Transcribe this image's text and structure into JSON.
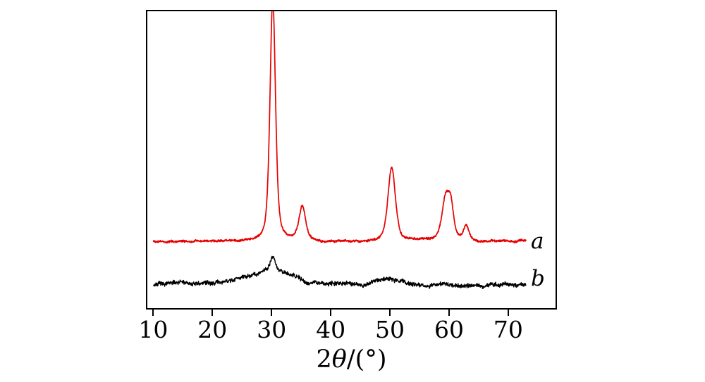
{
  "figure": {
    "background": "#ffffff",
    "axis_color": "#000000"
  },
  "chart_data": {
    "type": "line",
    "title": "",
    "xlabel": "2θ/(°)",
    "xlabel_parts": [
      "2",
      "θ",
      "/(°)"
    ],
    "ylabel": "",
    "x_ticks": [
      10,
      20,
      30,
      40,
      50,
      60,
      70
    ],
    "xlim_display": [
      9,
      78
    ],
    "x_range": [
      10,
      73
    ],
    "grid": false,
    "legend_position": "right-inside",
    "series": [
      {
        "label": "a",
        "color": "#e60000",
        "baseline": 0.225,
        "noise_amp": 0.004,
        "seed": 42,
        "peaks": [
          {
            "center": 30.2,
            "height": 0.82,
            "fwhm": 1.1
          },
          {
            "center": 35.2,
            "height": 0.115,
            "fwhm": 1.3
          },
          {
            "center": 50.3,
            "height": 0.25,
            "fwhm": 1.5
          },
          {
            "center": 59.4,
            "height": 0.135,
            "fwhm": 1.5
          },
          {
            "center": 60.3,
            "height": 0.1,
            "fwhm": 1.2
          },
          {
            "center": 62.9,
            "height": 0.05,
            "fwhm": 1.1
          }
        ]
      },
      {
        "label": "b",
        "color": "#000000",
        "baseline": 0.078,
        "noise_amp": 0.008,
        "seed": 7,
        "peaks": [
          {
            "center": 30.0,
            "height": 0.05,
            "fwhm": 9.0
          },
          {
            "center": 30.2,
            "height": 0.045,
            "fwhm": 0.9
          },
          {
            "center": 50.3,
            "height": 0.018,
            "fwhm": 6.0
          }
        ]
      }
    ]
  }
}
